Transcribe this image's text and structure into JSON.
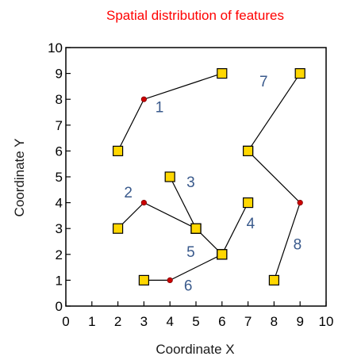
{
  "chart_data": {
    "type": "scatter",
    "title": "Spatial distribution of features",
    "xlabel": "Coordinate X",
    "ylabel": "Coordinate Y",
    "xlim": [
      0,
      10
    ],
    "ylim": [
      0,
      10
    ],
    "xticks": [
      0,
      1,
      2,
      3,
      4,
      5,
      6,
      7,
      8,
      9,
      10
    ],
    "yticks": [
      0,
      1,
      2,
      3,
      4,
      5,
      6,
      7,
      8,
      9,
      10
    ],
    "grid": false,
    "colors": {
      "endpoint_fill": "#ffd700",
      "endpoint_stroke": "#000000",
      "vertex_fill": "#cc0000",
      "line": "#000000",
      "label": "#3a5a8c",
      "title": "#ff0000"
    },
    "series": [
      {
        "label": "1",
        "label_at": [
          3.6,
          7.5
        ],
        "points": [
          [
            2,
            6
          ],
          [
            3,
            8
          ],
          [
            6,
            9
          ]
        ],
        "markers": [
          "endpoint",
          "vertex",
          "endpoint"
        ]
      },
      {
        "label": "2",
        "label_at": [
          2.4,
          4.2
        ],
        "points": [
          [
            2,
            3
          ],
          [
            3,
            4
          ],
          [
            5,
            3
          ]
        ],
        "markers": [
          "endpoint",
          "vertex",
          "endpoint"
        ]
      },
      {
        "label": "3",
        "label_at": [
          4.8,
          4.6
        ],
        "points": [
          [
            4,
            5
          ],
          [
            5,
            3
          ]
        ],
        "markers": [
          "endpoint",
          "endpoint"
        ]
      },
      {
        "label": "4",
        "label_at": [
          7.1,
          3.0
        ],
        "points": [
          [
            6,
            2
          ],
          [
            7,
            4
          ]
        ],
        "markers": [
          "endpoint",
          "endpoint"
        ]
      },
      {
        "label": "5",
        "label_at": [
          4.8,
          1.9
        ],
        "points": [
          [
            5,
            3
          ],
          [
            6,
            2
          ]
        ],
        "markers": [
          "endpoint",
          "endpoint"
        ]
      },
      {
        "label": "6",
        "label_at": [
          4.7,
          0.6
        ],
        "points": [
          [
            3,
            1
          ],
          [
            4,
            1
          ],
          [
            6,
            2
          ]
        ],
        "markers": [
          "endpoint",
          "vertex",
          "endpoint"
        ]
      },
      {
        "label": "7",
        "label_at": [
          7.6,
          8.5
        ],
        "points": [
          [
            9,
            9
          ],
          [
            7,
            6
          ]
        ],
        "markers": [
          "endpoint",
          "endpoint"
        ]
      },
      {
        "label": "8",
        "label_at": [
          8.9,
          2.2
        ],
        "points": [
          [
            7,
            6
          ],
          [
            9,
            4
          ],
          [
            8,
            1
          ]
        ],
        "markers": [
          "endpoint",
          "vertex",
          "endpoint"
        ]
      }
    ]
  }
}
